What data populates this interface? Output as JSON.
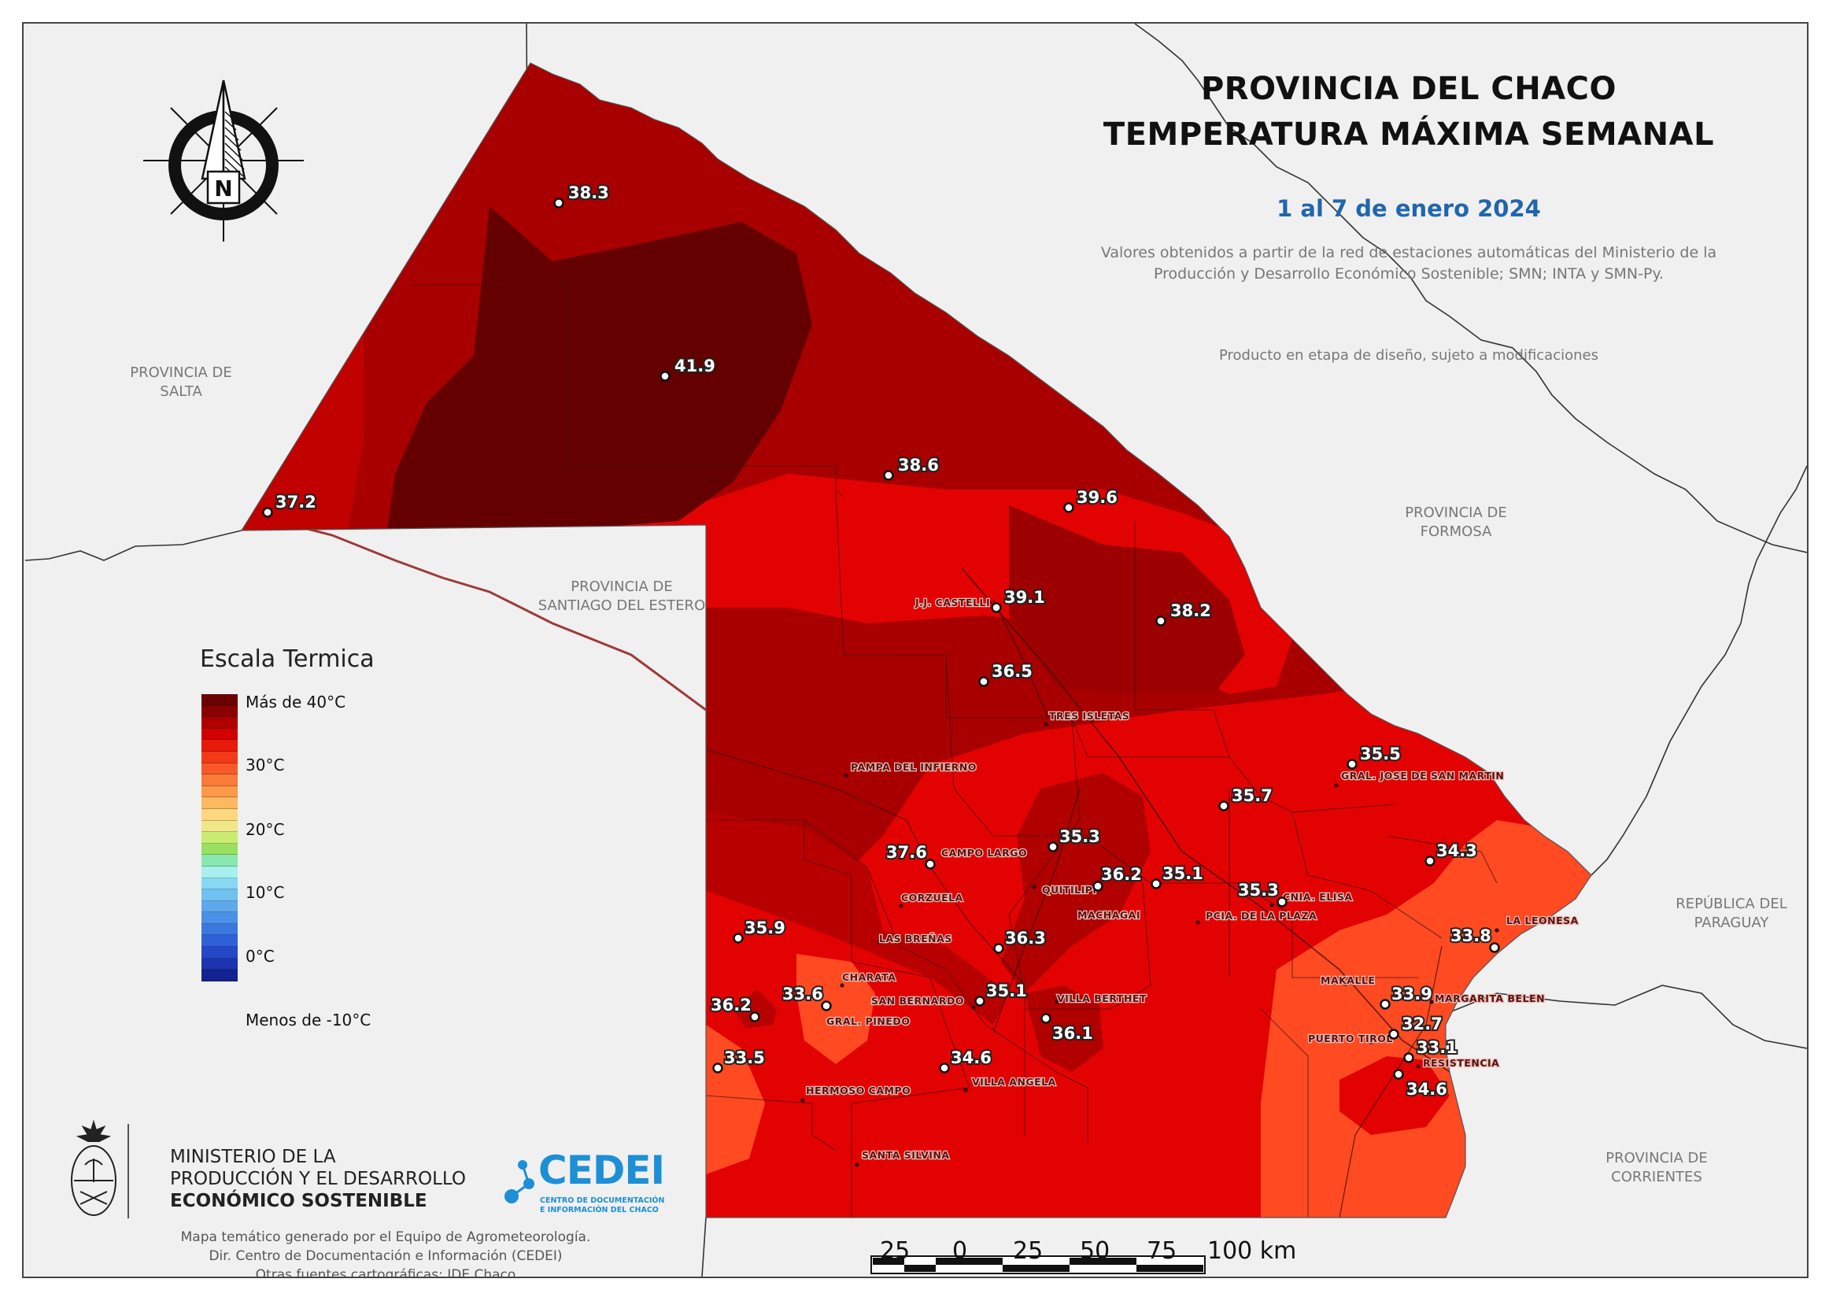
{
  "title": {
    "line1": "PROVINCIA DEL CHACO",
    "line2": "TEMPERATURA MÁXIMA SEMANAL",
    "date": "1 al 7 de enero 2024"
  },
  "notes": {
    "source_line1": "Valores obtenidos a partir de la red de estaciones automáticas del Ministerio de la",
    "source_line2": "Producción y Desarrollo Económico Sostenible; SMN; INTA y SMN-Py.",
    "disclaimer": "Producto en etapa de diseño, sujeto a modificaciones"
  },
  "regions": {
    "salta_1": "PROVINCIA DE",
    "salta_2": "SALTA",
    "formosa_1": "PROVINCIA DE",
    "formosa_2": "FORMOSA",
    "santiago_1": "PROVINCIA DE",
    "santiago_2": "SANTIAGO DEL ESTERO",
    "paraguay_1": "REPÚBLICA DEL",
    "paraguay_2": "PARAGUAY",
    "corrientes_1": "PROVINCIA DE",
    "corrientes_2": "CORRIENTES"
  },
  "north_arrow_label": "N",
  "legend": {
    "title": "Escala Termica",
    "labels": [
      "Más de 40°C",
      "30°C",
      "20°C",
      "10°C",
      "0°C",
      "Menos de -10°C"
    ],
    "colors": [
      "#6b0000",
      "#8b0000",
      "#b00000",
      "#d40000",
      "#e81a0a",
      "#f23a18",
      "#f75a28",
      "#fa7a38",
      "#fc9a4a",
      "#fdb860",
      "#fdd880",
      "#f0e888",
      "#c8ec70",
      "#9ae060",
      "#88e8b0",
      "#a8f0f0",
      "#88d8f4",
      "#70c0f0",
      "#60a8ec",
      "#4a90e8",
      "#3a78e0",
      "#2e60d8",
      "#2448c8",
      "#1c34b0",
      "#142290"
    ]
  },
  "stations": [
    {
      "value": "38.3"
    },
    {
      "value": "41.9"
    },
    {
      "value": "37.2"
    },
    {
      "value": "38.6"
    },
    {
      "value": "39.6"
    },
    {
      "value": "39.1"
    },
    {
      "value": "38.2"
    },
    {
      "value": "36.5"
    },
    {
      "value": "35.5"
    },
    {
      "value": "35.7"
    },
    {
      "value": "35.3"
    },
    {
      "value": "34.3"
    },
    {
      "value": "37.6"
    },
    {
      "value": "36.2"
    },
    {
      "value": "35.1"
    },
    {
      "value": "35.3"
    },
    {
      "value": "35.9"
    },
    {
      "value": "36.3"
    },
    {
      "value": "33.8"
    },
    {
      "value": "36.2"
    },
    {
      "value": "33.6"
    },
    {
      "value": "35.1"
    },
    {
      "value": "33.9"
    },
    {
      "value": "36.1"
    },
    {
      "value": "32.7"
    },
    {
      "value": "33.5"
    },
    {
      "value": "34.6"
    },
    {
      "value": "33.1"
    },
    {
      "value": "34.6"
    }
  ],
  "towns": [
    "J.J. CASTELLI",
    "TRES ISLETAS",
    "PAMPA DEL INFIERNO",
    "GRAL. JOSE DE SAN MARTIN",
    "CAMPO LARGO",
    "QUITILIPI",
    "MACHAGAI",
    "CNIA. ELISA",
    "PCIA. DE LA PLAZA",
    "CORZUELA",
    "LAS BREÑAS",
    "CHARATA",
    "SAN BERNARDO",
    "VILLA BERTHET",
    "GRAL. PINEDO",
    "LA LEONESA",
    "MAKALLE",
    "MARGARITA BELEN",
    "PUERTO TIROL",
    "RESISTENCIA",
    "HERMOSO CAMPO",
    "VILLA ANGELA",
    "SANTA SILVINA"
  ],
  "scale_bar": {
    "ticks": [
      "25",
      "0",
      "25",
      "50",
      "75",
      "100 km"
    ]
  },
  "footer": {
    "ministry_1": "MINISTERIO DE LA",
    "ministry_2": "PRODUCCIÓN Y EL DESARROLLO",
    "ministry_3": "ECONÓMICO SOSTENIBLE",
    "cedei": "CEDEI",
    "cedei_sub_1": "CENTRO DE DOCUMENTACIÓN",
    "cedei_sub_2": "E INFORMACIÓN DEL CHACO",
    "credit_1": "Mapa temático generado por el Equipo de Agrometeorología.",
    "credit_2": "Dir. Centro de Documentación e Información (CEDEI)",
    "credit_3": "Otras fuentes cartográficas: IDE Chaco"
  }
}
